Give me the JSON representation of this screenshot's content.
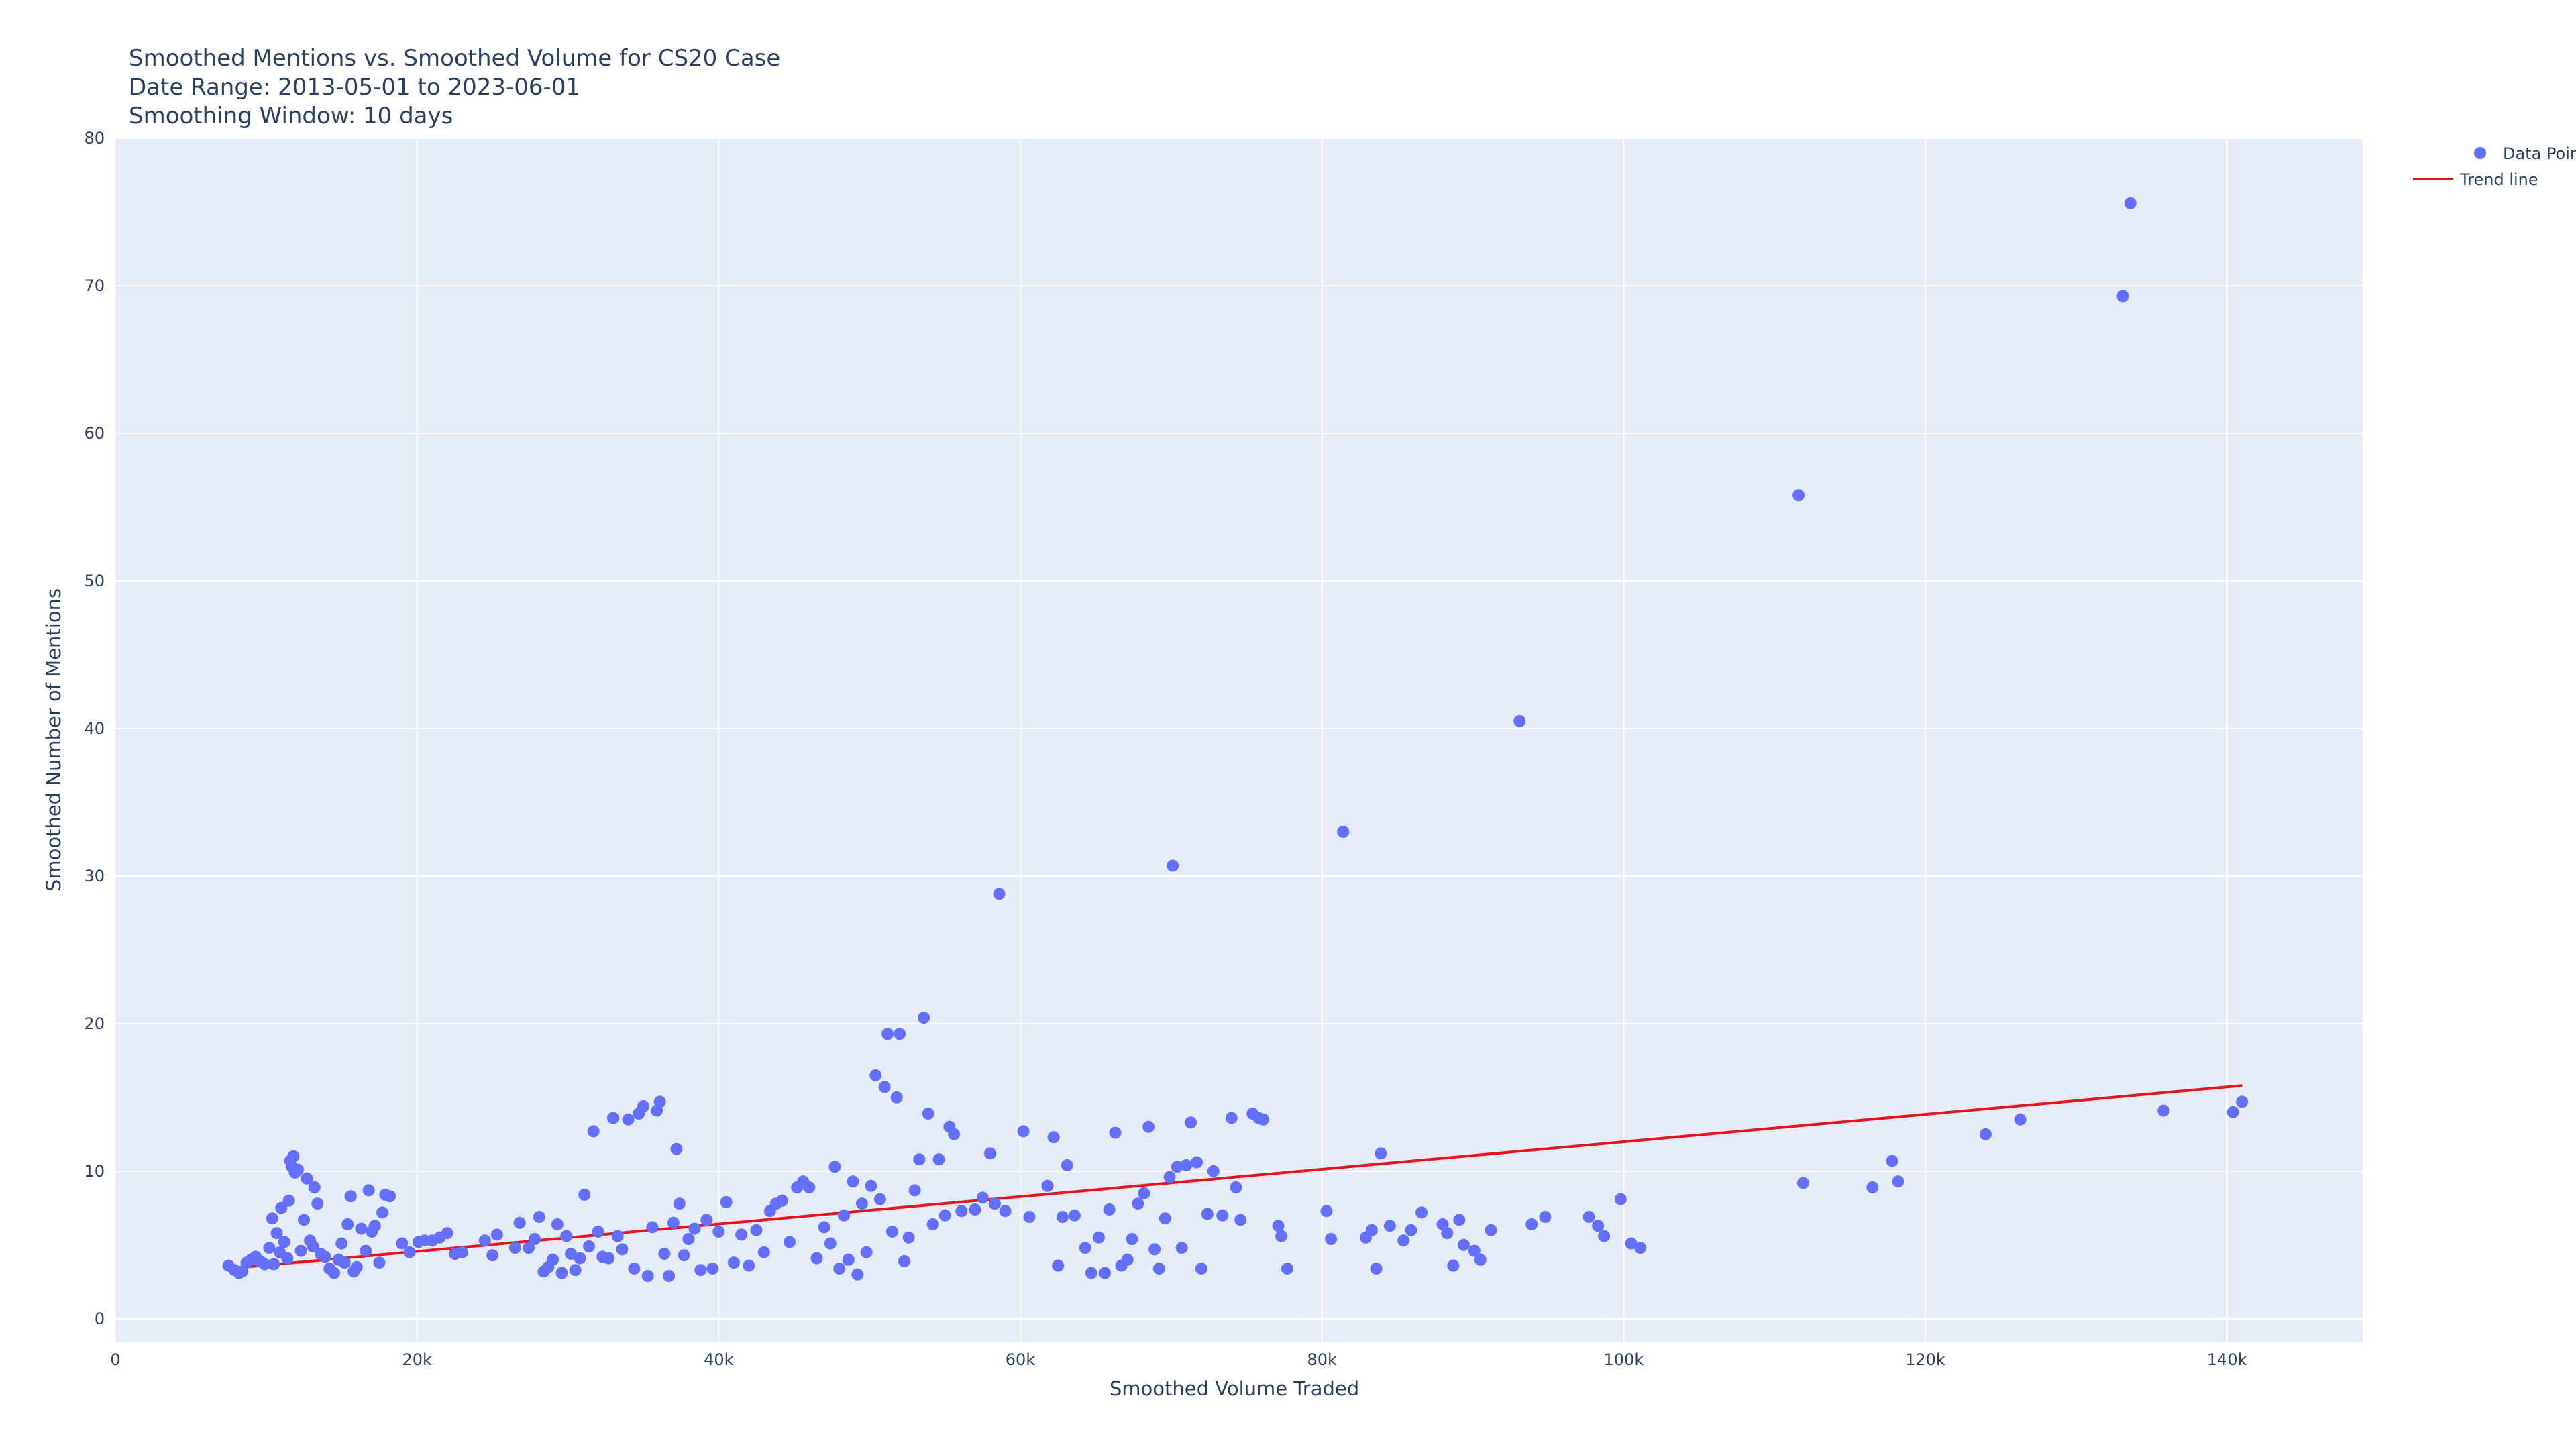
{
  "chart_data": {
    "type": "scatter",
    "title_lines": [
      "Smoothed Mentions vs. Smoothed Volume for CS20 Case",
      "Date Range: 2013-05-01 to 2023-06-01",
      "Smoothing Window: 10 days"
    ],
    "xlabel": "Smoothed Volume Traded",
    "ylabel": "Smoothed Number of Mentions",
    "xlim": [
      0,
      149000
    ],
    "ylim": [
      -1.6,
      80
    ],
    "x_ticks": [
      0,
      20000,
      40000,
      60000,
      80000,
      100000,
      120000,
      140000
    ],
    "x_tick_labels": [
      "0",
      "20k",
      "40k",
      "60k",
      "80k",
      "100k",
      "120k",
      "140k"
    ],
    "y_ticks": [
      0,
      10,
      20,
      30,
      40,
      50,
      60,
      70,
      80
    ],
    "y_tick_labels": [
      "0",
      "10",
      "20",
      "30",
      "40",
      "50",
      "60",
      "70",
      "80"
    ],
    "grid": true,
    "legend_position": "top-right",
    "colors": {
      "points": "#636efa",
      "trend": "#e8141c",
      "plot_bg": "#e5ecf6",
      "grid": "#ffffff"
    },
    "series": [
      {
        "name": "Data Points",
        "type": "scatter",
        "points": [
          [
            7500,
            3.6
          ],
          [
            7900,
            3.3
          ],
          [
            8200,
            3.1
          ],
          [
            8400,
            3.2
          ],
          [
            8700,
            3.8
          ],
          [
            9000,
            4.0
          ],
          [
            9300,
            4.2
          ],
          [
            9600,
            3.9
          ],
          [
            9900,
            3.7
          ],
          [
            10200,
            4.8
          ],
          [
            10400,
            6.8
          ],
          [
            10500,
            3.7
          ],
          [
            10700,
            5.8
          ],
          [
            10900,
            4.5
          ],
          [
            11000,
            7.5
          ],
          [
            11200,
            5.2
          ],
          [
            11400,
            4.1
          ],
          [
            11500,
            8.0
          ],
          [
            11600,
            10.7
          ],
          [
            11700,
            10.3
          ],
          [
            11800,
            11.0
          ],
          [
            11900,
            9.9
          ],
          [
            12100,
            10.1
          ],
          [
            12300,
            4.6
          ],
          [
            12500,
            6.7
          ],
          [
            12700,
            9.5
          ],
          [
            12900,
            5.3
          ],
          [
            13100,
            4.9
          ],
          [
            13200,
            8.9
          ],
          [
            13400,
            7.8
          ],
          [
            13600,
            4.4
          ],
          [
            13900,
            4.2
          ],
          [
            14200,
            3.4
          ],
          [
            14500,
            3.1
          ],
          [
            14800,
            4.0
          ],
          [
            15000,
            5.1
          ],
          [
            15200,
            3.8
          ],
          [
            15400,
            6.4
          ],
          [
            15600,
            8.3
          ],
          [
            15800,
            3.2
          ],
          [
            16000,
            3.5
          ],
          [
            16300,
            6.1
          ],
          [
            16600,
            4.6
          ],
          [
            16800,
            8.7
          ],
          [
            17000,
            5.9
          ],
          [
            17200,
            6.3
          ],
          [
            17500,
            3.8
          ],
          [
            17700,
            7.2
          ],
          [
            17900,
            8.4
          ],
          [
            18200,
            8.3
          ],
          [
            19000,
            5.1
          ],
          [
            19500,
            4.5
          ],
          [
            20100,
            5.2
          ],
          [
            20500,
            5.3
          ],
          [
            21000,
            5.3
          ],
          [
            21500,
            5.5
          ],
          [
            22000,
            5.8
          ],
          [
            22500,
            4.4
          ],
          [
            23000,
            4.5
          ],
          [
            24500,
            5.3
          ],
          [
            25000,
            4.3
          ],
          [
            25300,
            5.7
          ],
          [
            26500,
            4.8
          ],
          [
            26800,
            6.5
          ],
          [
            27400,
            4.8
          ],
          [
            27800,
            5.4
          ],
          [
            28100,
            6.9
          ],
          [
            28400,
            3.2
          ],
          [
            28700,
            3.5
          ],
          [
            29000,
            4.0
          ],
          [
            29300,
            6.4
          ],
          [
            29600,
            3.1
          ],
          [
            29900,
            5.6
          ],
          [
            30200,
            4.4
          ],
          [
            30500,
            3.3
          ],
          [
            30800,
            4.1
          ],
          [
            31100,
            8.4
          ],
          [
            31400,
            4.9
          ],
          [
            31700,
            12.7
          ],
          [
            32000,
            5.9
          ],
          [
            32300,
            4.2
          ],
          [
            32700,
            4.1
          ],
          [
            33000,
            13.6
          ],
          [
            33300,
            5.6
          ],
          [
            33600,
            4.7
          ],
          [
            34000,
            13.5
          ],
          [
            34400,
            3.4
          ],
          [
            34700,
            13.9
          ],
          [
            35000,
            14.4
          ],
          [
            35300,
            2.9
          ],
          [
            35600,
            6.2
          ],
          [
            35900,
            14.1
          ],
          [
            36100,
            14.7
          ],
          [
            36400,
            4.4
          ],
          [
            36700,
            2.9
          ],
          [
            37000,
            6.5
          ],
          [
            37200,
            11.5
          ],
          [
            37400,
            7.8
          ],
          [
            37700,
            4.3
          ],
          [
            38000,
            5.4
          ],
          [
            38400,
            6.1
          ],
          [
            38800,
            3.3
          ],
          [
            39200,
            6.7
          ],
          [
            39600,
            3.4
          ],
          [
            40000,
            5.9
          ],
          [
            40500,
            7.9
          ],
          [
            41000,
            3.8
          ],
          [
            41500,
            5.7
          ],
          [
            42000,
            3.6
          ],
          [
            42500,
            6.0
          ],
          [
            43000,
            4.5
          ],
          [
            43400,
            7.3
          ],
          [
            43800,
            7.8
          ],
          [
            44200,
            8.0
          ],
          [
            44700,
            5.2
          ],
          [
            45200,
            8.9
          ],
          [
            45600,
            9.3
          ],
          [
            46000,
            8.9
          ],
          [
            46500,
            4.1
          ],
          [
            47000,
            6.2
          ],
          [
            47400,
            5.1
          ],
          [
            47700,
            10.3
          ],
          [
            48000,
            3.4
          ],
          [
            48300,
            7.0
          ],
          [
            48600,
            4.0
          ],
          [
            48900,
            9.3
          ],
          [
            49200,
            3.0
          ],
          [
            49500,
            7.8
          ],
          [
            49800,
            4.5
          ],
          [
            50100,
            9.0
          ],
          [
            50400,
            16.5
          ],
          [
            50700,
            8.1
          ],
          [
            51000,
            15.7
          ],
          [
            51200,
            19.3
          ],
          [
            51500,
            5.9
          ],
          [
            51800,
            15.0
          ],
          [
            52000,
            19.3
          ],
          [
            52300,
            3.9
          ],
          [
            52600,
            5.5
          ],
          [
            53000,
            8.7
          ],
          [
            53300,
            10.8
          ],
          [
            53600,
            20.4
          ],
          [
            53900,
            13.9
          ],
          [
            54200,
            6.4
          ],
          [
            54600,
            10.8
          ],
          [
            55000,
            7.0
          ],
          [
            55300,
            13.0
          ],
          [
            55600,
            12.5
          ],
          [
            56100,
            7.3
          ],
          [
            57000,
            7.4
          ],
          [
            57500,
            8.2
          ],
          [
            58000,
            11.2
          ],
          [
            58300,
            7.8
          ],
          [
            58600,
            28.8
          ],
          [
            59000,
            7.3
          ],
          [
            60200,
            12.7
          ],
          [
            60600,
            6.9
          ],
          [
            61800,
            9.0
          ],
          [
            62200,
            12.3
          ],
          [
            62500,
            3.6
          ],
          [
            62800,
            6.9
          ],
          [
            63100,
            10.4
          ],
          [
            63600,
            7.0
          ],
          [
            64300,
            4.8
          ],
          [
            64700,
            3.1
          ],
          [
            65200,
            5.5
          ],
          [
            65600,
            3.1
          ],
          [
            65900,
            7.4
          ],
          [
            66300,
            12.6
          ],
          [
            66700,
            3.6
          ],
          [
            67100,
            4.0
          ],
          [
            67400,
            5.4
          ],
          [
            67800,
            7.8
          ],
          [
            68200,
            8.5
          ],
          [
            68500,
            13.0
          ],
          [
            68900,
            4.7
          ],
          [
            69200,
            3.4
          ],
          [
            69600,
            6.8
          ],
          [
            69900,
            9.6
          ],
          [
            70100,
            30.7
          ],
          [
            70400,
            10.3
          ],
          [
            70700,
            4.8
          ],
          [
            71000,
            10.4
          ],
          [
            71300,
            13.3
          ],
          [
            71700,
            10.6
          ],
          [
            72000,
            3.4
          ],
          [
            72400,
            7.1
          ],
          [
            72800,
            10.0
          ],
          [
            73400,
            7.0
          ],
          [
            74000,
            13.6
          ],
          [
            74300,
            8.9
          ],
          [
            74600,
            6.7
          ],
          [
            75400,
            13.9
          ],
          [
            75800,
            13.6
          ],
          [
            76100,
            13.5
          ],
          [
            77100,
            6.3
          ],
          [
            77300,
            5.6
          ],
          [
            77700,
            3.4
          ],
          [
            80300,
            7.3
          ],
          [
            80600,
            5.4
          ],
          [
            81400,
            33.0
          ],
          [
            82900,
            5.5
          ],
          [
            83300,
            6.0
          ],
          [
            83600,
            3.4
          ],
          [
            83900,
            11.2
          ],
          [
            84500,
            6.3
          ],
          [
            85400,
            5.3
          ],
          [
            85900,
            6.0
          ],
          [
            86600,
            7.2
          ],
          [
            88000,
            6.4
          ],
          [
            88300,
            5.8
          ],
          [
            88700,
            3.6
          ],
          [
            89100,
            6.7
          ],
          [
            89400,
            5.0
          ],
          [
            90100,
            4.6
          ],
          [
            90500,
            4.0
          ],
          [
            91200,
            6.0
          ],
          [
            93100,
            40.5
          ],
          [
            93900,
            6.4
          ],
          [
            94800,
            6.9
          ],
          [
            97700,
            6.9
          ],
          [
            98300,
            6.3
          ],
          [
            98700,
            5.6
          ],
          [
            99800,
            8.1
          ],
          [
            100500,
            5.1
          ],
          [
            101100,
            4.8
          ],
          [
            111600,
            55.8
          ],
          [
            111900,
            9.2
          ],
          [
            116500,
            8.9
          ],
          [
            117800,
            10.7
          ],
          [
            118200,
            9.3
          ],
          [
            124000,
            12.5
          ],
          [
            126300,
            13.5
          ],
          [
            133100,
            69.3
          ],
          [
            133600,
            75.6
          ],
          [
            135800,
            14.1
          ],
          [
            140400,
            14.0
          ],
          [
            141000,
            14.7
          ]
        ]
      },
      {
        "name": "Trend line",
        "type": "line",
        "x": [
          7500,
          141000
        ],
        "y": [
          3.4,
          15.8
        ]
      }
    ]
  }
}
